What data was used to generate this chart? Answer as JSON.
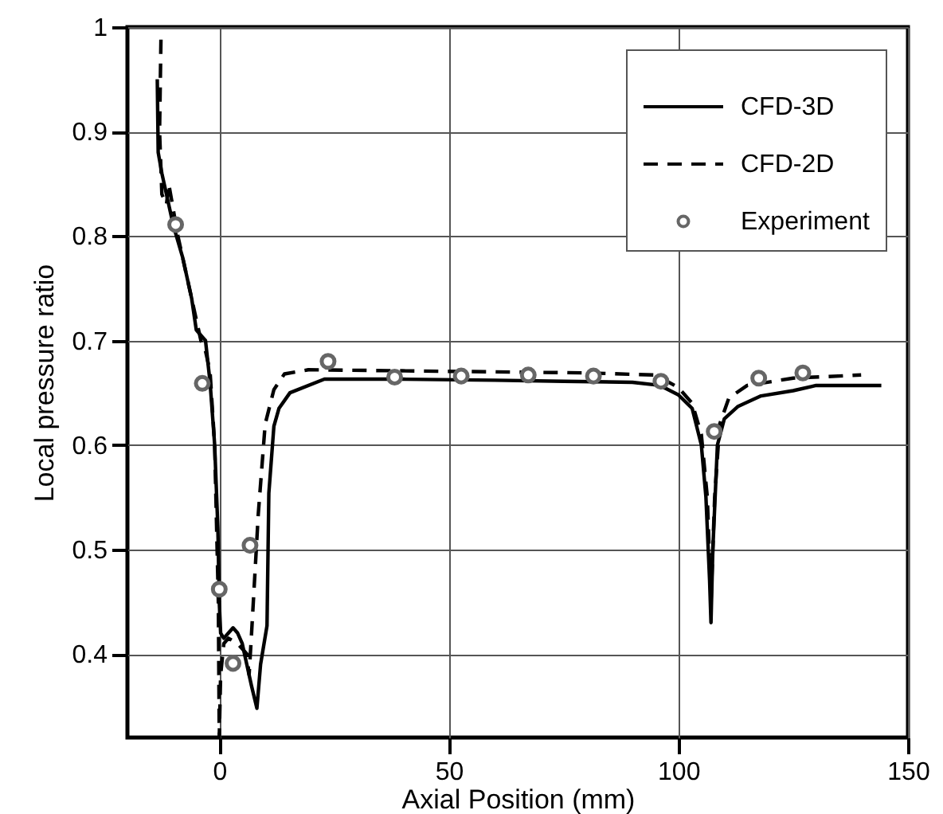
{
  "chart_data": {
    "type": "line",
    "xlabel": "Axial Position (mm)",
    "ylabel": "Local pressure ratio",
    "xlim": [
      -20,
      150
    ],
    "ylim": [
      0.32,
      1
    ],
    "xticks": [
      0,
      50,
      100,
      150
    ],
    "yticks": [
      0.4,
      0.5,
      0.6,
      0.7,
      0.8,
      0.9,
      1
    ],
    "grid": true,
    "legend": "top right",
    "series": [
      {
        "name": "CFD-3D",
        "line_style": "solid",
        "color": "#000000",
        "x": [
          -13.5,
          -13.3,
          -12.5,
          -11.5,
          -10,
          -8,
          -6,
          -5,
          -4,
          -3,
          -2,
          -1,
          -0.3,
          0,
          0.3,
          1,
          2,
          3,
          4,
          5,
          6,
          7,
          8.2,
          9,
          10.4,
          10.8,
          11.9,
          13,
          15.4,
          22.9,
          40,
          60,
          75,
          90,
          96,
          100,
          103,
          105,
          106,
          106.8,
          107.1,
          107.5,
          108.5,
          110,
          113,
          118,
          125,
          130,
          144.2
        ],
        "values": [
          0.95,
          0.88,
          0.86,
          0.84,
          0.81,
          0.78,
          0.74,
          0.71,
          0.705,
          0.7,
          0.66,
          0.6,
          0.52,
          0.45,
          0.42,
          0.415,
          0.42,
          0.425,
          0.42,
          0.41,
          0.39,
          0.37,
          0.348,
          0.39,
          0.427,
          0.554,
          0.618,
          0.635,
          0.65,
          0.663,
          0.663,
          0.662,
          0.661,
          0.66,
          0.657,
          0.648,
          0.635,
          0.6,
          0.55,
          0.47,
          0.43,
          0.5,
          0.6,
          0.625,
          0.637,
          0.647,
          0.652,
          0.657,
          0.657
        ]
      },
      {
        "name": "CFD-2D",
        "line_style": "dashed",
        "color": "#000000",
        "x": [
          -12.7,
          -13,
          -12.5,
          -11.5,
          -11,
          -9,
          -7,
          -5,
          -4,
          -3,
          -2,
          -1,
          -0.2,
          0,
          0.3,
          1,
          2,
          4,
          6,
          6.5,
          7,
          8.5,
          10,
          11.9,
          14.2,
          19.4,
          40,
          60,
          80,
          95,
          100,
          103,
          105,
          106.3,
          107.1,
          107.9,
          109,
          111,
          115,
          125,
          139.8
        ],
        "values": [
          0.988,
          0.9,
          0.84,
          0.83,
          0.85,
          0.8,
          0.76,
          0.72,
          0.7,
          0.69,
          0.67,
          0.6,
          0.45,
          0.32,
          0.38,
          0.41,
          0.415,
          0.41,
          0.4,
          0.38,
          0.417,
          0.534,
          0.62,
          0.653,
          0.668,
          0.672,
          0.671,
          0.67,
          0.669,
          0.667,
          0.655,
          0.64,
          0.61,
          0.55,
          0.45,
          0.55,
          0.62,
          0.645,
          0.657,
          0.664,
          0.667
        ]
      },
      {
        "name": "Experiment",
        "type": "scatter",
        "marker": "circle",
        "color": "#666666",
        "x": [
          -9.5,
          -3.7,
          0,
          3,
          6.7,
          23.7,
          38.2,
          52.7,
          67.3,
          81.5,
          96.2,
          107.8,
          117.5,
          127.1
        ],
        "values": [
          0.811,
          0.659,
          0.462,
          0.391,
          0.504,
          0.68,
          0.665,
          0.666,
          0.667,
          0.666,
          0.661,
          0.613,
          0.664,
          0.669
        ]
      }
    ]
  }
}
